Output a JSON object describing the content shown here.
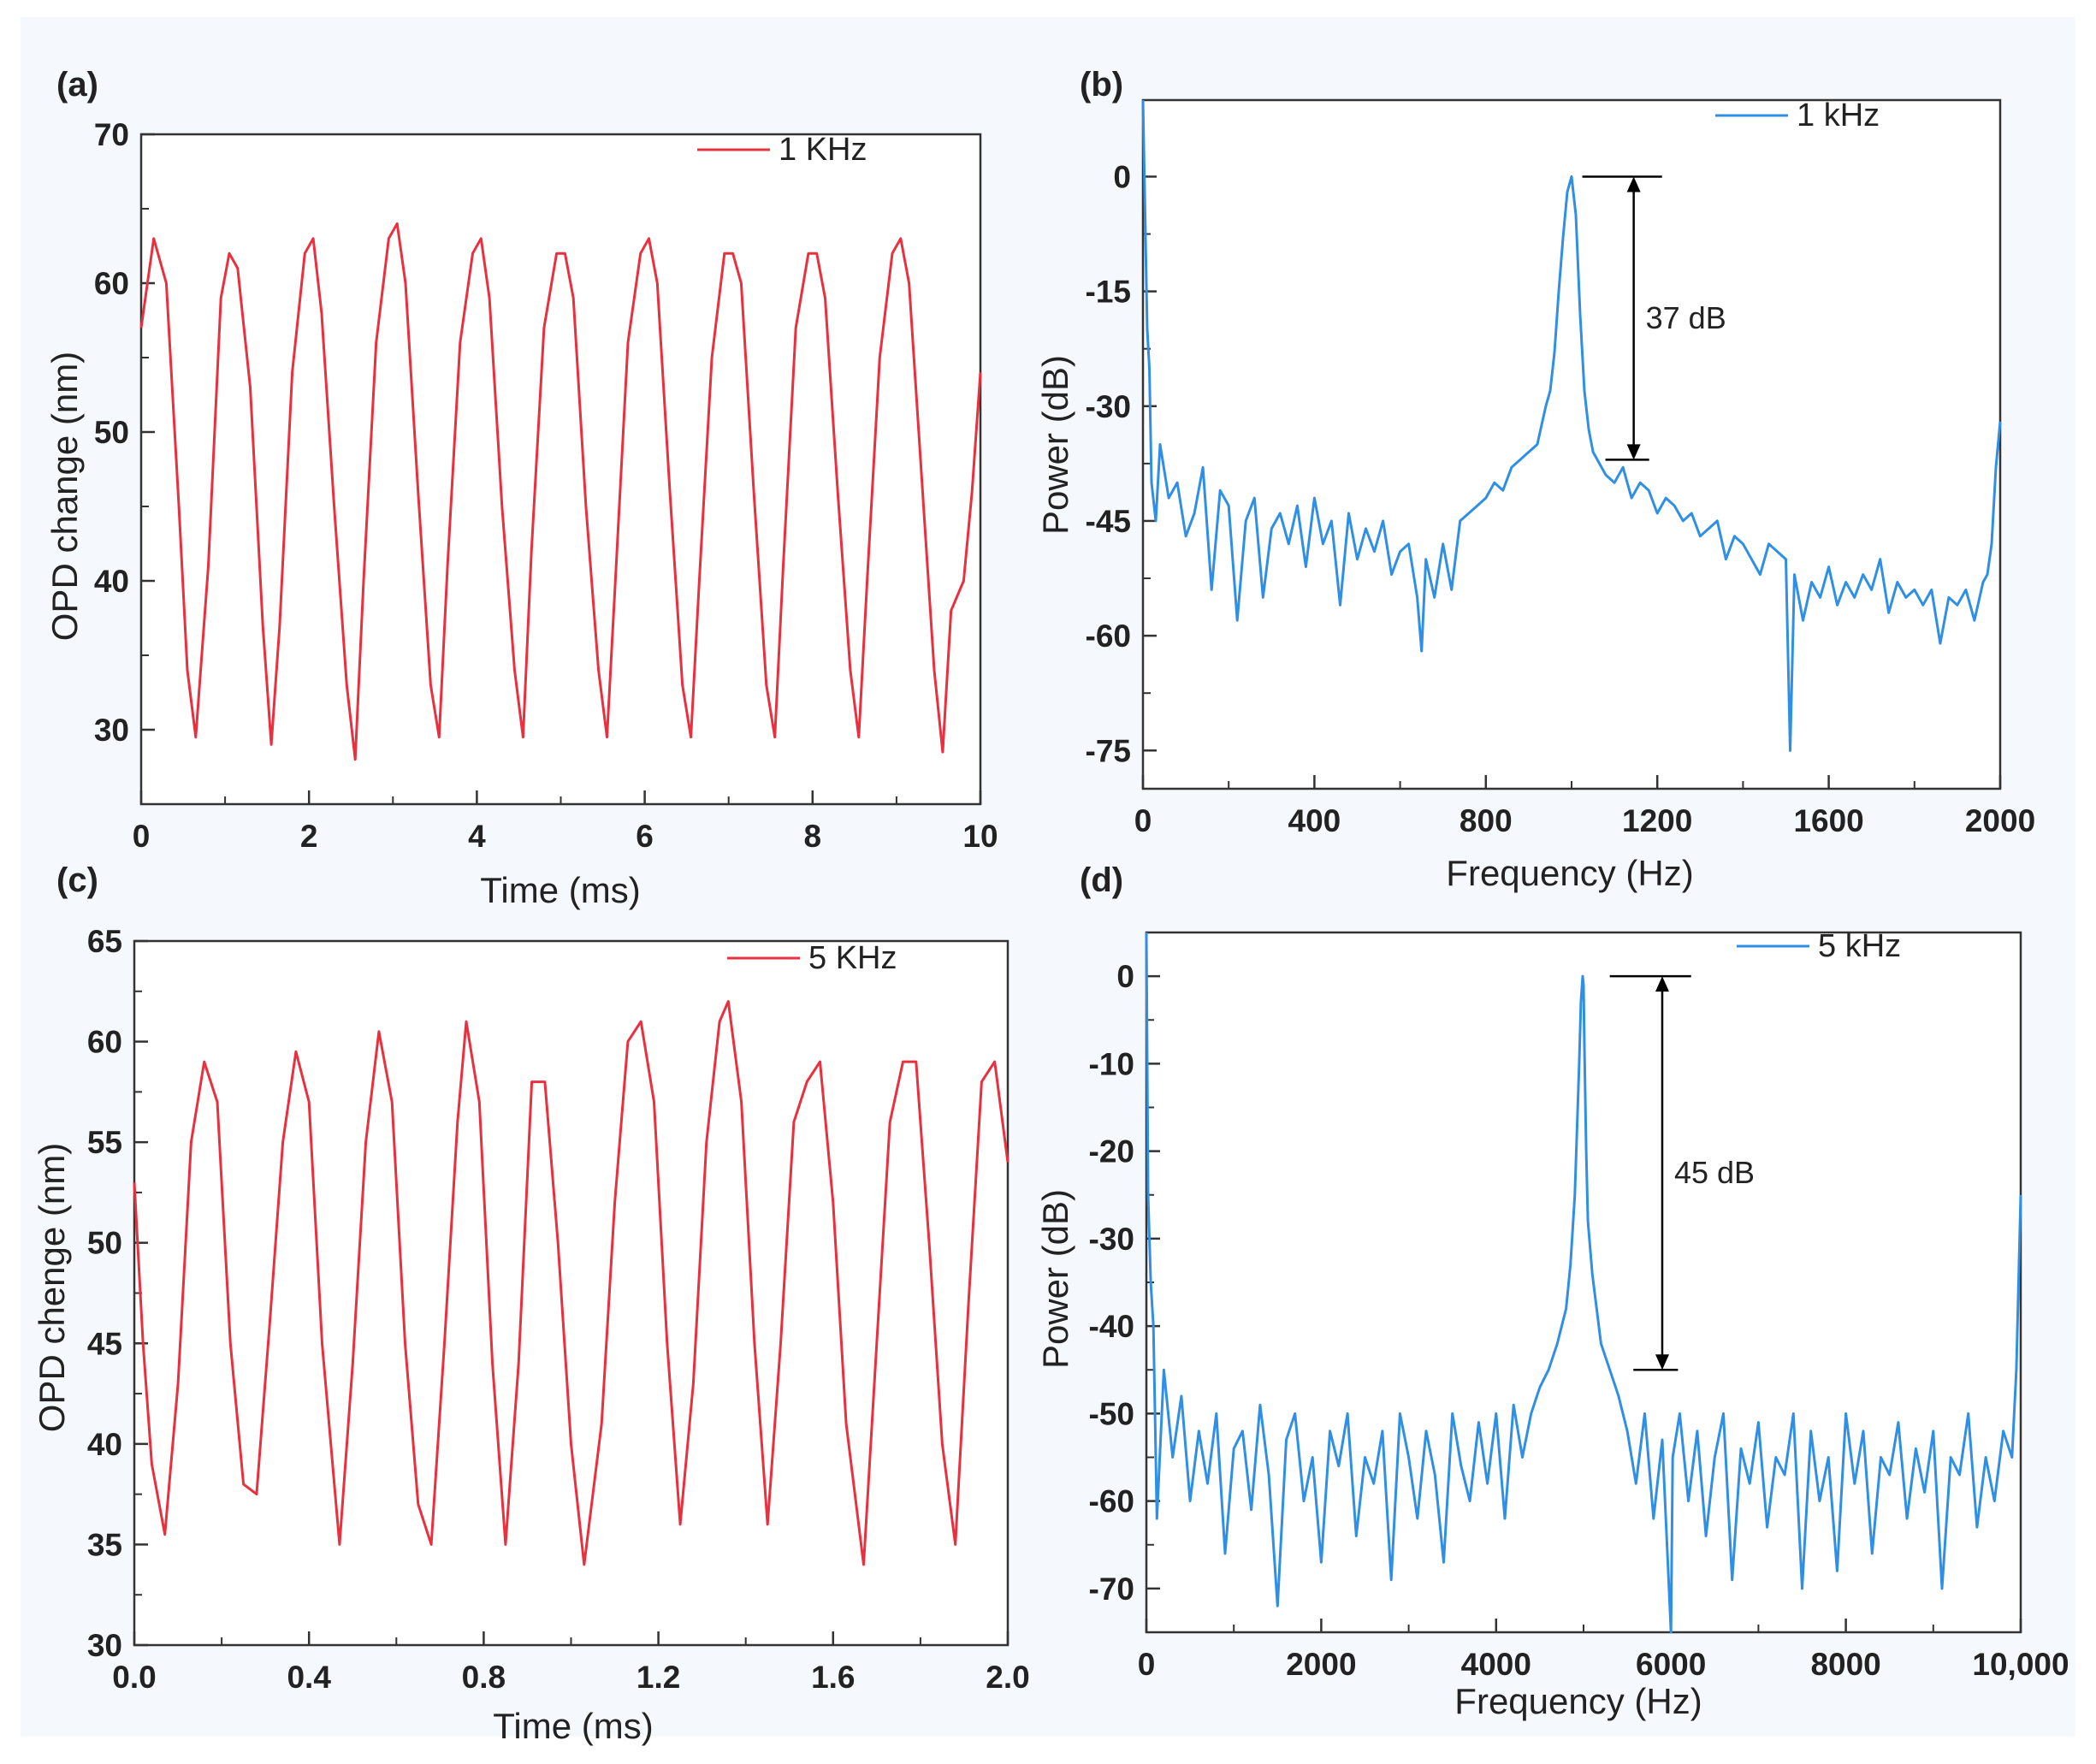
{
  "colors": {
    "red_trace": "#e8303f",
    "blue_trace": "#2f8fe4",
    "frame": "#333333"
  },
  "chart_data": [
    {
      "panel_label": "(a)",
      "type": "line",
      "xlabel": "Time (ms)",
      "ylabel": "OPD change (nm)",
      "xlim": [
        0,
        10
      ],
      "ylim": [
        25,
        70
      ],
      "xticks": [
        0,
        2,
        4,
        6,
        8,
        10
      ],
      "xtick_labels": [
        "0",
        "2",
        "4",
        "6",
        "8",
        "10"
      ],
      "yticks": [
        30,
        40,
        50,
        60,
        70
      ],
      "ytick_labels": [
        "30",
        "40",
        "50",
        "60",
        "70"
      ],
      "legend": "1 KHz",
      "series": [
        {
          "name": "1 KHz",
          "color": "red",
          "x": [
            0,
            0.15,
            0.3,
            0.45,
            0.55,
            0.65,
            0.8,
            0.95,
            1.05,
            1.15,
            1.3,
            1.45,
            1.55,
            1.65,
            1.8,
            1.95,
            2.05,
            2.15,
            2.3,
            2.45,
            2.55,
            2.65,
            2.8,
            2.95,
            3.05,
            3.15,
            3.3,
            3.45,
            3.55,
            3.65,
            3.8,
            3.95,
            4.05,
            4.15,
            4.3,
            4.45,
            4.55,
            4.65,
            4.8,
            4.95,
            5.05,
            5.15,
            5.3,
            5.45,
            5.55,
            5.65,
            5.8,
            5.95,
            6.05,
            6.15,
            6.3,
            6.45,
            6.55,
            6.65,
            6.8,
            6.95,
            7.05,
            7.15,
            7.3,
            7.45,
            7.55,
            7.65,
            7.8,
            7.95,
            8.05,
            8.15,
            8.3,
            8.45,
            8.55,
            8.65,
            8.8,
            8.95,
            9.05,
            9.15,
            9.3,
            9.45,
            9.55,
            9.65,
            9.8,
            9.9,
            10
          ],
          "y": [
            57,
            63,
            60,
            45,
            34,
            29.5,
            41,
            59,
            62,
            61,
            53,
            37,
            29,
            37,
            54,
            62,
            63,
            58,
            45,
            33,
            28,
            40,
            56,
            63,
            64,
            60,
            46,
            33,
            29.5,
            41,
            56,
            62,
            63,
            59,
            45,
            34,
            29.5,
            42,
            57,
            62,
            62,
            59,
            45,
            34,
            29.5,
            40,
            56,
            62,
            63,
            60,
            46,
            33,
            29.5,
            40,
            55,
            62,
            62,
            60,
            46,
            33,
            29.5,
            41,
            57,
            62,
            62,
            59,
            46,
            34,
            29.5,
            40,
            55,
            62,
            63,
            60,
            47,
            34,
            28.5,
            38,
            40,
            46,
            54
          ]
        }
      ]
    },
    {
      "panel_label": "(b)",
      "type": "line",
      "xlabel": "Frequency (Hz)",
      "ylabel": "Power (dB)",
      "xlim": [
        0,
        2000
      ],
      "ylim": [
        -80,
        10
      ],
      "xticks": [
        0,
        400,
        800,
        1200,
        1600,
        2000
      ],
      "xtick_labels": [
        "0",
        "400",
        "800",
        "1200",
        "1600",
        "2000"
      ],
      "yticks": [
        0,
        -15,
        -30,
        -45,
        -60,
        -75
      ],
      "ytick_labels": [
        "0",
        "-15",
        "-30",
        "-45",
        "-60",
        "-75"
      ],
      "legend": "1 kHz",
      "annotation": {
        "text": "37 dB",
        "top": 0,
        "bottom": -37,
        "x": 1145
      },
      "series": [
        {
          "name": "1 kHz",
          "color": "blue",
          "x": [
            0,
            5,
            10,
            15,
            20,
            30,
            40,
            60,
            80,
            100,
            120,
            140,
            160,
            180,
            200,
            220,
            240,
            260,
            280,
            300,
            320,
            340,
            360,
            380,
            400,
            420,
            440,
            460,
            480,
            500,
            520,
            540,
            560,
            580,
            600,
            620,
            640,
            650,
            660,
            680,
            700,
            720,
            740,
            760,
            780,
            800,
            820,
            840,
            860,
            880,
            900,
            920,
            940,
            950,
            960,
            970,
            980,
            990,
            1000,
            1010,
            1020,
            1030,
            1040,
            1050,
            1060,
            1080,
            1100,
            1120,
            1140,
            1160,
            1180,
            1200,
            1220,
            1240,
            1260,
            1280,
            1300,
            1320,
            1340,
            1360,
            1380,
            1400,
            1420,
            1440,
            1460,
            1480,
            1500,
            1510,
            1520,
            1540,
            1560,
            1580,
            1600,
            1620,
            1640,
            1660,
            1680,
            1700,
            1720,
            1740,
            1760,
            1780,
            1800,
            1820,
            1840,
            1860,
            1880,
            1900,
            1920,
            1940,
            1960,
            1970,
            1980,
            1990,
            2000
          ],
          "y": [
            10,
            -5,
            -20,
            -25,
            -40,
            -45,
            -35,
            -42,
            -40,
            -47,
            -44,
            -38,
            -54,
            -41,
            -43,
            -58,
            -45,
            -42,
            -55,
            -46,
            -44,
            -48,
            -43,
            -51,
            -42,
            -48,
            -45,
            -56,
            -44,
            -50,
            -46,
            -49,
            -45,
            -52,
            -49,
            -48,
            -55,
            -62,
            -50,
            -55,
            -48,
            -54,
            -45,
            -44,
            -43,
            -42,
            -40,
            -41,
            -38,
            -37,
            -36,
            -35,
            -30,
            -28,
            -23,
            -15,
            -8,
            -2,
            0,
            -5,
            -18,
            -28,
            -33,
            -36,
            -37,
            -39,
            -40,
            -38,
            -42,
            -40,
            -41,
            -44,
            -42,
            -43,
            -45,
            -44,
            -47,
            -46,
            -45,
            -50,
            -47,
            -48,
            -50,
            -52,
            -48,
            -49,
            -50,
            -75,
            -52,
            -58,
            -53,
            -55,
            -51,
            -56,
            -53,
            -55,
            -52,
            -54,
            -50,
            -57,
            -53,
            -55,
            -54,
            -56,
            -54,
            -61,
            -55,
            -56,
            -54,
            -58,
            -53,
            -52,
            -48,
            -38,
            -32
          ]
        }
      ]
    },
    {
      "panel_label": "(c)",
      "type": "line",
      "xlabel": "Time (ms)",
      "ylabel": "OPD chenge (nm)",
      "xlim": [
        0,
        2
      ],
      "ylim": [
        30,
        65
      ],
      "xticks": [
        0,
        0.4,
        0.8,
        1.2,
        1.6,
        2.0
      ],
      "xtick_labels": [
        "0.0",
        "0.4",
        "0.8",
        "1.2",
        "1.6",
        "2.0"
      ],
      "yticks": [
        30,
        35,
        40,
        45,
        50,
        55,
        60,
        65
      ],
      "ytick_labels": [
        "30",
        "35",
        "40",
        "45",
        "50",
        "55",
        "60",
        "65"
      ],
      "legend": "5 KHz",
      "series": [
        {
          "name": "5 KHz",
          "color": "red",
          "x": [
            0,
            0.02,
            0.04,
            0.07,
            0.1,
            0.13,
            0.16,
            0.19,
            0.22,
            0.25,
            0.28,
            0.31,
            0.34,
            0.37,
            0.4,
            0.43,
            0.47,
            0.5,
            0.53,
            0.56,
            0.59,
            0.62,
            0.65,
            0.68,
            0.71,
            0.74,
            0.76,
            0.79,
            0.82,
            0.85,
            0.88,
            0.91,
            0.94,
            0.97,
            1.0,
            1.03,
            1.07,
            1.1,
            1.13,
            1.16,
            1.19,
            1.22,
            1.25,
            1.28,
            1.31,
            1.34,
            1.36,
            1.39,
            1.42,
            1.45,
            1.48,
            1.51,
            1.54,
            1.57,
            1.6,
            1.63,
            1.67,
            1.7,
            1.73,
            1.76,
            1.79,
            1.82,
            1.85,
            1.88,
            1.91,
            1.94,
            1.97,
            2.0
          ],
          "y": [
            53,
            45,
            39,
            35.5,
            43,
            55,
            59,
            57,
            45,
            38,
            37.5,
            46,
            55,
            59.5,
            57,
            45,
            35,
            44,
            55,
            60.5,
            57,
            45,
            37,
            35,
            45,
            56,
            61,
            57,
            44,
            35,
            44,
            58,
            58,
            50,
            40,
            34,
            41,
            52,
            60,
            61,
            57,
            45,
            36,
            43,
            55,
            61,
            62,
            57,
            45,
            36,
            45,
            56,
            58,
            59,
            52,
            41,
            34,
            45,
            56,
            59,
            59,
            50,
            40,
            35,
            47,
            58,
            59,
            54
          ]
        }
      ]
    },
    {
      "panel_label": "(d)",
      "type": "line",
      "xlabel": "Frequency (Hz)",
      "ylabel": "Power (dB)",
      "xlim": [
        0,
        10000
      ],
      "ylim": [
        -75,
        5
      ],
      "xticks": [
        0,
        2000,
        4000,
        6000,
        8000,
        10000
      ],
      "xtick_labels": [
        "0",
        "2000",
        "4000",
        "6000",
        "8000",
        "10,000"
      ],
      "yticks": [
        0,
        -10,
        -20,
        -30,
        -40,
        -50,
        -60,
        -70
      ],
      "ytick_labels": [
        "0",
        "-10",
        "-20",
        "-30",
        "-40",
        "-50",
        "-60",
        "-70"
      ],
      "legend": "5 kHz",
      "annotation": {
        "text": "45 dB",
        "top": 0,
        "bottom": -45,
        "x": 5900
      },
      "series": [
        {
          "name": "5 kHz",
          "color": "blue",
          "x": [
            0,
            20,
            50,
            80,
            120,
            200,
            300,
            400,
            500,
            600,
            700,
            800,
            900,
            1000,
            1100,
            1200,
            1300,
            1400,
            1500,
            1600,
            1700,
            1800,
            1900,
            2000,
            2100,
            2200,
            2300,
            2400,
            2500,
            2600,
            2700,
            2800,
            2900,
            3000,
            3100,
            3200,
            3300,
            3400,
            3500,
            3600,
            3700,
            3800,
            3900,
            4000,
            4100,
            4200,
            4300,
            4400,
            4500,
            4600,
            4700,
            4800,
            4850,
            4900,
            4950,
            4970,
            4990,
            5000,
            5010,
            5030,
            5050,
            5100,
            5150,
            5200,
            5300,
            5400,
            5500,
            5600,
            5700,
            5800,
            5900,
            6000,
            6020,
            6100,
            6200,
            6300,
            6400,
            6500,
            6600,
            6700,
            6800,
            6900,
            7000,
            7100,
            7200,
            7300,
            7400,
            7500,
            7600,
            7700,
            7800,
            7900,
            8000,
            8100,
            8200,
            8300,
            8400,
            8500,
            8600,
            8700,
            8800,
            8900,
            9000,
            9100,
            9200,
            9300,
            9400,
            9500,
            9600,
            9700,
            9800,
            9900,
            9950,
            10000
          ],
          "y": [
            5,
            -25,
            -35,
            -40,
            -62,
            -45,
            -55,
            -48,
            -60,
            -52,
            -58,
            -50,
            -66,
            -54,
            -52,
            -61,
            -49,
            -57,
            -72,
            -53,
            -50,
            -60,
            -55,
            -67,
            -52,
            -56,
            -50,
            -64,
            -55,
            -58,
            -52,
            -69,
            -50,
            -55,
            -62,
            -52,
            -57,
            -67,
            -50,
            -56,
            -60,
            -51,
            -58,
            -50,
            -62,
            -49,
            -55,
            -50,
            -47,
            -45,
            -42,
            -38,
            -33,
            -25,
            -10,
            -3,
            0,
            -1,
            -8,
            -20,
            -28,
            -34,
            -38,
            -42,
            -45,
            -48,
            -52,
            -58,
            -50,
            -62,
            -53,
            -75,
            -55,
            -50,
            -60,
            -52,
            -64,
            -55,
            -50,
            -69,
            -54,
            -58,
            -51,
            -63,
            -55,
            -57,
            -50,
            -70,
            -52,
            -60,
            -55,
            -68,
            -50,
            -58,
            -52,
            -66,
            -55,
            -57,
            -51,
            -62,
            -54,
            -59,
            -52,
            -70,
            -55,
            -57,
            -50,
            -63,
            -55,
            -60,
            -52,
            -55,
            -45,
            -25
          ]
        }
      ]
    }
  ]
}
